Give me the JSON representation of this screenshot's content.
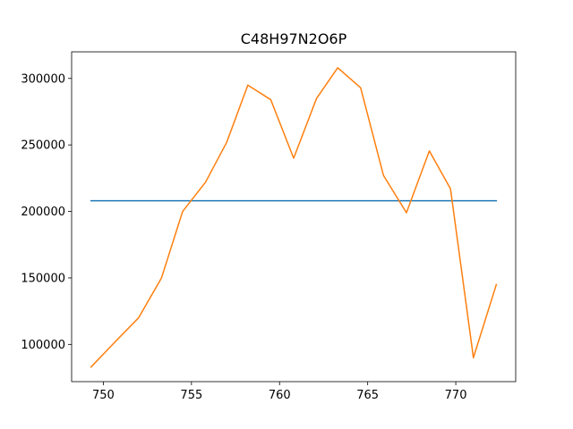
{
  "chart_data": {
    "type": "line",
    "title": "C48H97N2O6P",
    "xlabel": "",
    "ylabel": "",
    "xlim": [
      748.2,
      773.4
    ],
    "ylim": [
      72000,
      320000
    ],
    "x_ticks": [
      750,
      755,
      760,
      765,
      770
    ],
    "y_ticks": [
      100000,
      150000,
      200000,
      250000,
      300000
    ],
    "grid": false,
    "series": [
      {
        "color": "#1f77b4",
        "x": [
          749.3,
          772.3
        ],
        "y": [
          208000,
          208000
        ]
      },
      {
        "color": "#ff7f0e",
        "x": [
          749.3,
          750.6,
          752.0,
          753.3,
          754.5,
          755.8,
          757.0,
          758.2,
          759.5,
          760.8,
          762.1,
          763.3,
          764.6,
          765.9,
          767.2,
          768.5,
          769.7,
          771.0,
          772.3
        ],
        "y": [
          83000,
          101000,
          120000,
          150000,
          200000,
          222000,
          252000,
          295000,
          284000,
          240000,
          285000,
          308000,
          293000,
          227000,
          199000,
          245500,
          217000,
          90000,
          145000
        ]
      }
    ]
  }
}
